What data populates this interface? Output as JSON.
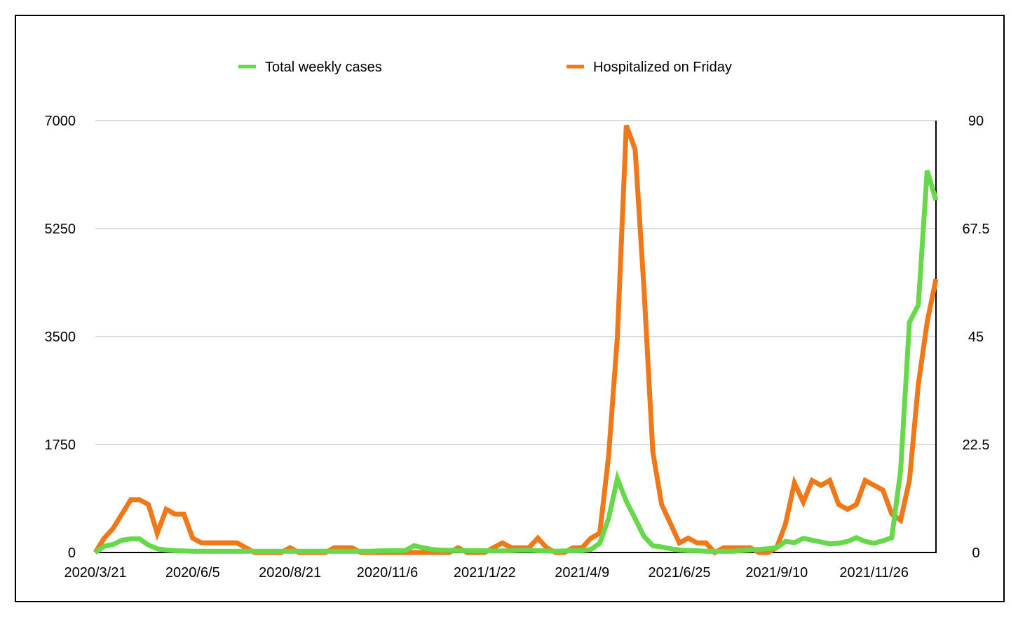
{
  "chart_data": {
    "type": "line",
    "title": "",
    "legend_position": "top",
    "x_tick_labels": [
      "2020/3/21",
      "2020/6/5",
      "2020/8/21",
      "2020/11/6",
      "2021/1/22",
      "2021/4/9",
      "2021/6/25",
      "2021/9/10",
      "2021/11/26"
    ],
    "x_tick_every_n_weeks": 11,
    "y_left": {
      "ylim": [
        0,
        7000
      ],
      "ticks": [
        "0",
        "1750",
        "3500",
        "5250",
        "7000"
      ]
    },
    "y_right": {
      "ylim": [
        0,
        90
      ],
      "ticks": [
        "0",
        "22.5",
        "45",
        "67.5",
        "90"
      ]
    },
    "grid": true,
    "series": [
      {
        "name": "Total weekly cases",
        "axis": "left",
        "color": "#66d94a",
        "values": [
          0,
          100,
          130,
          200,
          220,
          220,
          120,
          60,
          40,
          30,
          25,
          20,
          20,
          20,
          20,
          20,
          20,
          20,
          20,
          20,
          20,
          20,
          20,
          20,
          20,
          20,
          20,
          20,
          20,
          20,
          20,
          20,
          25,
          30,
          30,
          30,
          110,
          80,
          50,
          40,
          35,
          30,
          30,
          30,
          30,
          25,
          25,
          30,
          35,
          35,
          30,
          25,
          20,
          25,
          30,
          30,
          50,
          150,
          550,
          1200,
          830,
          550,
          260,
          110,
          90,
          60,
          40,
          30,
          30,
          20,
          20,
          20,
          20,
          30,
          40,
          50,
          60,
          80,
          180,
          160,
          230,
          200,
          170,
          140,
          150,
          180,
          240,
          180,
          150,
          190,
          240,
          1320,
          3730,
          4010,
          6190,
          5710
        ]
      },
      {
        "name": "Hospitalized on Friday",
        "axis": "right",
        "color": "#f07818",
        "values": [
          0,
          3,
          5,
          8,
          11,
          11,
          10,
          4,
          9,
          8,
          8,
          3,
          2,
          2,
          2,
          2,
          2,
          1,
          0,
          0,
          0,
          0,
          1,
          0,
          0,
          0,
          0,
          1,
          1,
          1,
          0,
          0,
          0,
          0,
          0,
          0,
          0,
          0,
          0,
          0,
          0,
          1,
          0,
          0,
          0,
          1,
          2,
          1,
          1,
          1,
          3,
          1,
          0,
          0,
          1,
          1,
          3,
          4,
          20,
          45,
          89,
          84,
          55,
          21,
          10,
          6,
          2,
          3,
          2,
          2,
          0,
          1,
          1,
          1,
          1,
          0,
          0,
          1,
          6,
          14.5,
          10.5,
          15,
          14,
          15,
          10,
          9,
          10,
          15,
          14,
          13,
          8,
          6.7,
          15,
          35,
          48,
          57
        ]
      }
    ]
  }
}
